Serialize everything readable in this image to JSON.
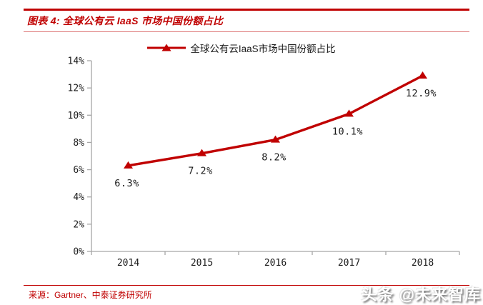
{
  "page": {
    "background": "#ffffff",
    "accent": "#c00000"
  },
  "header": {
    "title": "图表 4: 全球公有云 IaaS 市场中国份额占比"
  },
  "legend": {
    "label": "全球公有云IaaS市场中国份额占比"
  },
  "chart_data": {
    "type": "line",
    "title": "全球公有云IaaS市场中国份额占比",
    "categories": [
      "2014",
      "2015",
      "2016",
      "2017",
      "2018"
    ],
    "values": [
      6.3,
      7.2,
      8.2,
      10.1,
      12.9
    ],
    "series": [
      {
        "name": "全球公有云IaaS市场中国份额占比",
        "values": [
          6.3,
          7.2,
          8.2,
          10.1,
          12.9
        ]
      }
    ],
    "point_labels": [
      "6.3%",
      "7.2%",
      "8.2%",
      "10.1%",
      "12.9%"
    ],
    "xlabel": "",
    "ylabel": "",
    "ylim": [
      0,
      14
    ],
    "ytick_step": 2,
    "ytick_labels": [
      "0%",
      "2%",
      "4%",
      "6%",
      "8%",
      "10%",
      "12%",
      "14%"
    ],
    "grid": false,
    "legend_position": "top",
    "marker": "triangle-up",
    "line_color": "#c00000",
    "axis_color": "#a6a6a6",
    "tick_label_color": "#1a1a1a",
    "point_label_color": "#1a1a1a"
  },
  "footer": {
    "source": "来源：Gartner、中泰证券研究所",
    "watermark": "头条 @未来智库"
  }
}
